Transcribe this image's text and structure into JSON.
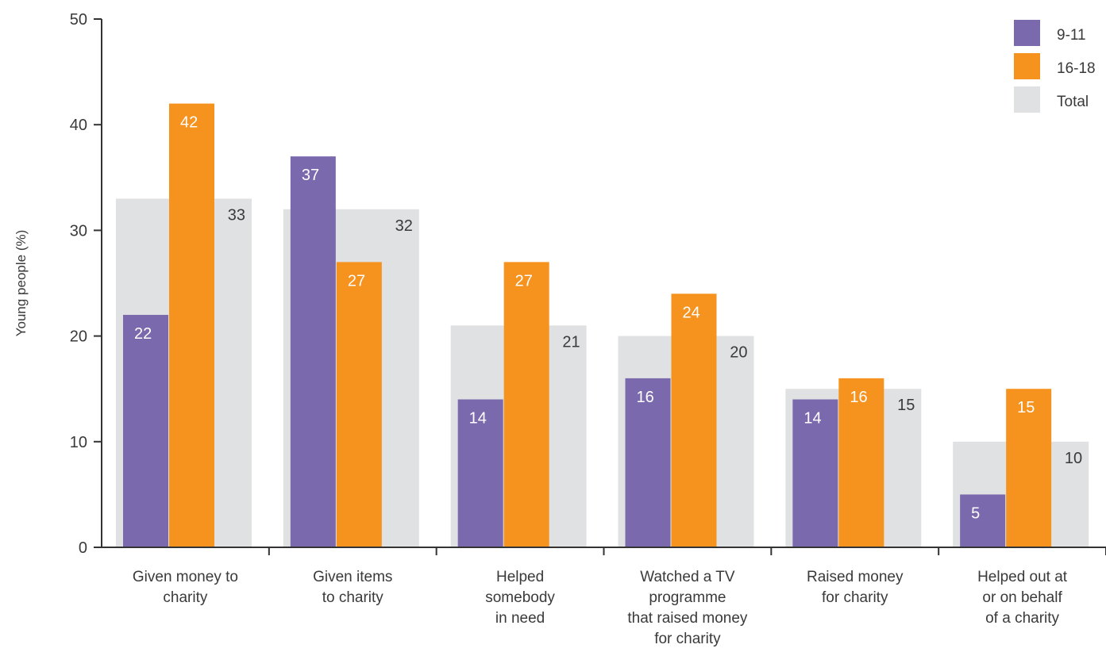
{
  "chart_data": {
    "type": "bar",
    "ylabel": "Young people (%)",
    "ylim": [
      0,
      50
    ],
    "yticks": [
      0,
      10,
      20,
      30,
      40,
      50
    ],
    "categories": [
      [
        "Given money to",
        "charity"
      ],
      [
        "Given items",
        "to charity"
      ],
      [
        "Helped",
        "somebody",
        "in need"
      ],
      [
        "Watched a TV",
        "programme",
        "that raised money",
        "for charity"
      ],
      [
        "Raised money",
        "for charity"
      ],
      [
        "Helped out at",
        "or on behalf",
        "of a charity"
      ]
    ],
    "series": [
      {
        "name": "9-11",
        "color": "#7b69ae",
        "values": [
          22,
          37,
          14,
          16,
          14,
          5
        ]
      },
      {
        "name": "16-18",
        "color": "#f6921e",
        "values": [
          42,
          27,
          27,
          24,
          16,
          15
        ]
      },
      {
        "name": "Total",
        "color": "#e0e1e2",
        "values": [
          33,
          32,
          21,
          20,
          15,
          10
        ]
      }
    ],
    "legend": "top-right",
    "grid": false
  }
}
